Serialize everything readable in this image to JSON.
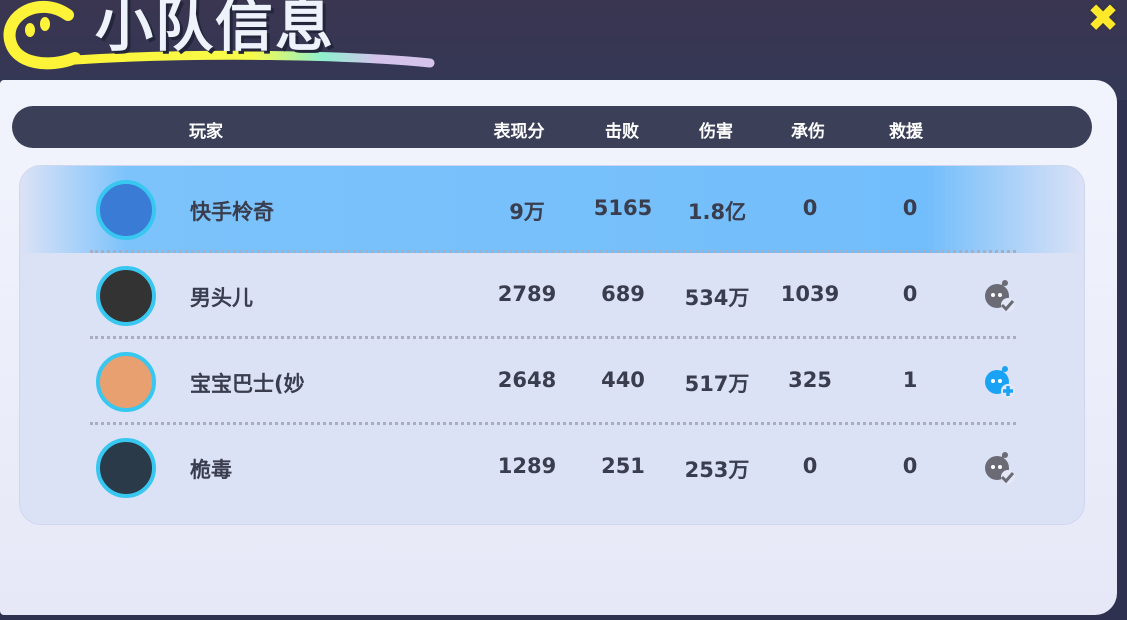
{
  "title": "小队信息",
  "close_icon": "close-x-icon",
  "columns": [
    "玩家",
    "表现分",
    "击败",
    "伤害",
    "承伤",
    "救援"
  ],
  "players": [
    {
      "name": "快手柃奇",
      "score": "9万",
      "kills": "5165",
      "damage": "1.8亿",
      "taken": "0",
      "rescue": "0",
      "highlight": true,
      "avatar_color": "#3a7bd5",
      "action": null
    },
    {
      "name": "男头儿",
      "score": "2789",
      "kills": "689",
      "damage": "534万",
      "taken": "1039",
      "rescue": "0",
      "avatar_color": "#333333",
      "action": "friend-added-icon",
      "action_color": "#6a6b75"
    },
    {
      "name": "宝宝巴士(妙",
      "score": "2648",
      "kills": "440",
      "damage": "517万",
      "taken": "325",
      "rescue": "1",
      "avatar_color": "#e8a070",
      "action": "add-friend-icon",
      "action_color": "#1aa3f5"
    },
    {
      "name": "桅毒",
      "score": "1289",
      "kills": "251",
      "damage": "253万",
      "taken": "0",
      "rescue": "0",
      "avatar_color": "#2a3a48",
      "action": "friend-added-icon",
      "action_color": "#6a6b75"
    }
  ]
}
